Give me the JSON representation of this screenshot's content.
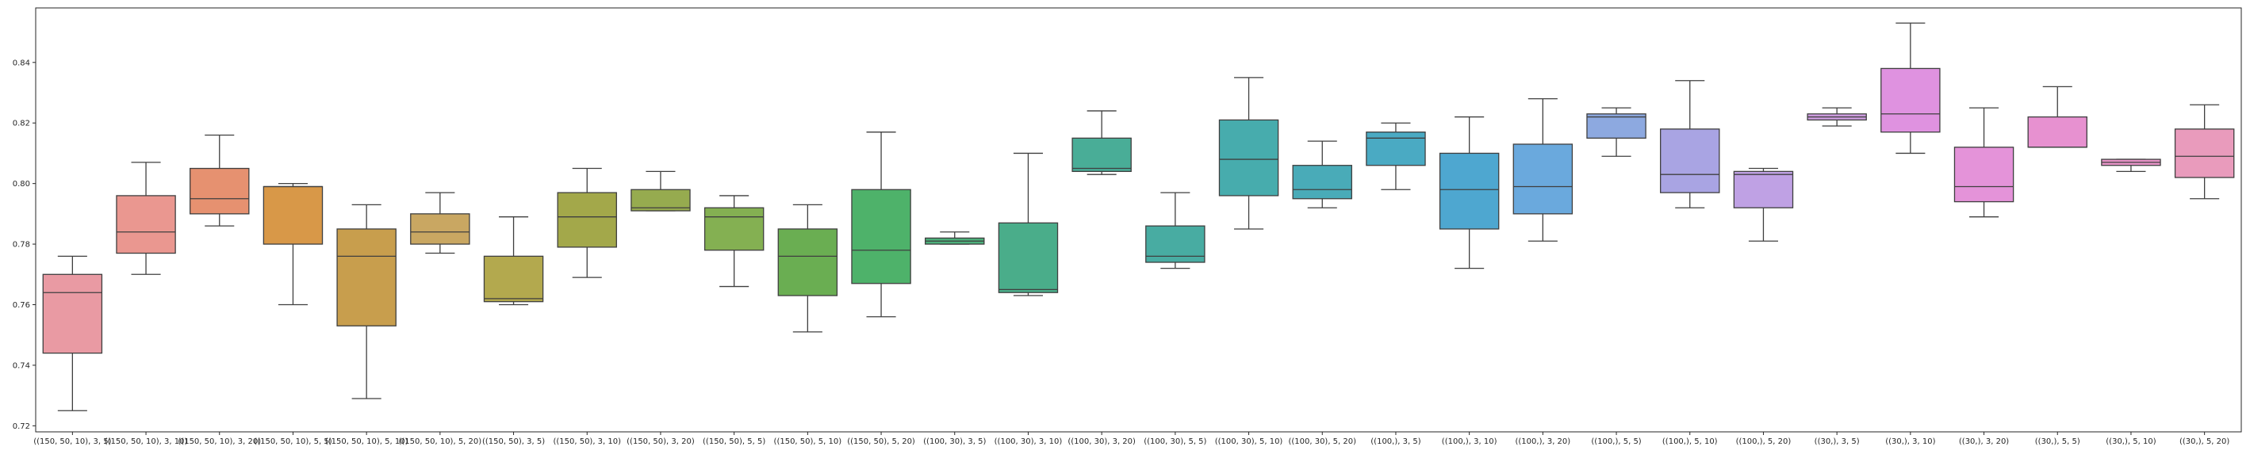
{
  "chart_data": {
    "type": "box",
    "title": "",
    "xlabel": "",
    "ylabel": "",
    "ylim": [
      0.718,
      0.858
    ],
    "yticks": [
      0.72,
      0.74,
      0.76,
      0.78,
      0.8,
      0.82,
      0.84
    ],
    "ytick_labels": [
      "0.72",
      "0.74",
      "0.76",
      "0.78",
      "0.80",
      "0.82",
      "0.84"
    ],
    "grid": false,
    "legend": "none",
    "categories": [
      "((150, 50, 10), 3, 5)",
      "((150, 50, 10), 3, 10)",
      "((150, 50, 10), 3, 20)",
      "((150, 50, 10), 5, 5)",
      "((150, 50, 10), 5, 10)",
      "((150, 50, 10), 5, 20)",
      "((150, 50), 3, 5)",
      "((150, 50), 3, 10)",
      "((150, 50), 3, 20)",
      "((150, 50), 5, 5)",
      "((150, 50), 5, 10)",
      "((150, 50), 5, 20)",
      "((100, 30), 3, 5)",
      "((100, 30), 3, 10)",
      "((100, 30), 3, 20)",
      "((100, 30), 5, 5)",
      "((100, 30), 5, 10)",
      "((100, 30), 5, 20)",
      "((100,), 3, 5)",
      "((100,), 3, 10)",
      "((100,), 3, 20)",
      "((100,), 5, 5)",
      "((100,), 5, 10)",
      "((100,), 5, 20)",
      "((30,), 3, 5)",
      "((30,), 3, 10)",
      "((30,), 3, 20)",
      "((30,), 5, 5)",
      "((30,), 5, 10)",
      "((30,), 5, 20)"
    ],
    "boxes": [
      {
        "whislo": 0.725,
        "q1": 0.744,
        "med": 0.764,
        "q3": 0.77,
        "whishi": 0.776,
        "color": "#e99aa3"
      },
      {
        "whislo": 0.77,
        "q1": 0.777,
        "med": 0.784,
        "q3": 0.796,
        "whishi": 0.807,
        "color": "#ea9790"
      },
      {
        "whislo": 0.786,
        "q1": 0.79,
        "med": 0.795,
        "q3": 0.805,
        "whishi": 0.816,
        "color": "#e69170"
      },
      {
        "whislo": 0.76,
        "q1": 0.78,
        "med": 0.799,
        "q3": 0.799,
        "whishi": 0.8,
        "color": "#d89848"
      },
      {
        "whislo": 0.729,
        "q1": 0.753,
        "med": 0.776,
        "q3": 0.785,
        "whishi": 0.793,
        "color": "#c89e4d"
      },
      {
        "whislo": 0.777,
        "q1": 0.78,
        "med": 0.784,
        "q3": 0.79,
        "whishi": 0.797,
        "color": "#c9a762"
      },
      {
        "whislo": 0.76,
        "q1": 0.761,
        "med": 0.762,
        "q3": 0.776,
        "whishi": 0.789,
        "color": "#b3a94e"
      },
      {
        "whislo": 0.769,
        "q1": 0.779,
        "med": 0.789,
        "q3": 0.797,
        "whishi": 0.805,
        "color": "#a3a84a"
      },
      {
        "whislo": 0.791,
        "q1": 0.791,
        "med": 0.792,
        "q3": 0.798,
        "whishi": 0.804,
        "color": "#96ab4f"
      },
      {
        "whislo": 0.766,
        "q1": 0.778,
        "med": 0.789,
        "q3": 0.792,
        "whishi": 0.796,
        "color": "#84b052"
      },
      {
        "whislo": 0.751,
        "q1": 0.763,
        "med": 0.776,
        "q3": 0.785,
        "whishi": 0.793,
        "color": "#6aae52"
      },
      {
        "whislo": 0.756,
        "q1": 0.767,
        "med": 0.778,
        "q3": 0.798,
        "whishi": 0.817,
        "color": "#4eb26a"
      },
      {
        "whislo": 0.78,
        "q1": 0.78,
        "med": 0.781,
        "q3": 0.782,
        "whishi": 0.784,
        "color": "#4cb07b"
      },
      {
        "whislo": 0.763,
        "q1": 0.764,
        "med": 0.765,
        "q3": 0.787,
        "whishi": 0.81,
        "color": "#4aad8a"
      },
      {
        "whislo": 0.803,
        "q1": 0.804,
        "med": 0.805,
        "q3": 0.815,
        "whishi": 0.824,
        "color": "#49ad97"
      },
      {
        "whislo": 0.772,
        "q1": 0.774,
        "med": 0.776,
        "q3": 0.786,
        "whishi": 0.797,
        "color": "#48aca2"
      },
      {
        "whislo": 0.785,
        "q1": 0.796,
        "med": 0.808,
        "q3": 0.821,
        "whishi": 0.835,
        "color": "#47acad"
      },
      {
        "whislo": 0.792,
        "q1": 0.795,
        "med": 0.798,
        "q3": 0.806,
        "whishi": 0.814,
        "color": "#49abb8"
      },
      {
        "whislo": 0.798,
        "q1": 0.806,
        "med": 0.815,
        "q3": 0.817,
        "whishi": 0.82,
        "color": "#4aaac3"
      },
      {
        "whislo": 0.772,
        "q1": 0.785,
        "med": 0.798,
        "q3": 0.81,
        "whishi": 0.822,
        "color": "#4ea7d0"
      },
      {
        "whislo": 0.781,
        "q1": 0.79,
        "med": 0.799,
        "q3": 0.813,
        "whishi": 0.828,
        "color": "#6aa9dd"
      },
      {
        "whislo": 0.809,
        "q1": 0.815,
        "med": 0.822,
        "q3": 0.823,
        "whishi": 0.825,
        "color": "#8da9e0"
      },
      {
        "whislo": 0.792,
        "q1": 0.797,
        "med": 0.803,
        "q3": 0.818,
        "whishi": 0.834,
        "color": "#a9a4e3"
      },
      {
        "whislo": 0.781,
        "q1": 0.792,
        "med": 0.803,
        "q3": 0.804,
        "whishi": 0.805,
        "color": "#bfa1e4"
      },
      {
        "whislo": 0.819,
        "q1": 0.821,
        "med": 0.822,
        "q3": 0.823,
        "whishi": 0.825,
        "color": "#d09ee3"
      },
      {
        "whislo": 0.81,
        "q1": 0.817,
        "med": 0.823,
        "q3": 0.838,
        "whishi": 0.853,
        "color": "#df92e0"
      },
      {
        "whislo": 0.789,
        "q1": 0.794,
        "med": 0.799,
        "q3": 0.812,
        "whishi": 0.825,
        "color": "#e493d9"
      },
      {
        "whislo": 0.812,
        "q1": 0.812,
        "med": 0.812,
        "q3": 0.822,
        "whishi": 0.832,
        "color": "#e791d0"
      },
      {
        "whislo": 0.804,
        "q1": 0.806,
        "med": 0.807,
        "q3": 0.808,
        "whishi": 0.808,
        "color": "#e894c8"
      },
      {
        "whislo": 0.795,
        "q1": 0.802,
        "med": 0.809,
        "q3": 0.818,
        "whishi": 0.826,
        "color": "#e99bbc"
      }
    ]
  }
}
